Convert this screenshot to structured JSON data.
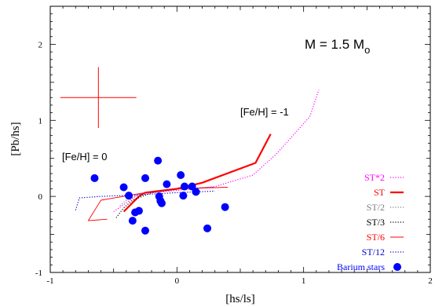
{
  "chart_data": {
    "type": "line",
    "xlabel": "[hs/ls]",
    "ylabel": "[Pb/hs]",
    "xlim": [
      -1,
      2
    ],
    "ylim": [
      -1,
      2.5
    ],
    "xticks": [
      -1,
      0,
      1,
      2
    ],
    "yticks": [
      -1,
      0,
      1,
      2
    ],
    "tick_labels": {
      "x": [
        "-1",
        "0",
        "1",
        "2"
      ],
      "y": [
        "-1",
        "0",
        "1",
        "2"
      ]
    },
    "grid": false,
    "legend_position": "bottom-right",
    "annotations": {
      "mass": "M = 1.5 M",
      "mass_subscript": "o",
      "feh_low": "[Fe/H] = -1",
      "feh_high": "[Fe/H] = 0"
    },
    "error_bar": {
      "x": -0.62,
      "y": 1.3,
      "x_err": 0.3,
      "y_err": 0.4,
      "color": "#ff0000"
    },
    "series": [
      {
        "name": "ST*2",
        "color": "#ff00ff",
        "style": "dotted",
        "width": 1.2,
        "x": [
          -0.5,
          -0.3,
          0.0,
          0.3,
          0.6,
          0.78,
          1.05,
          1.12
        ],
        "y": [
          -0.2,
          0.03,
          0.08,
          0.13,
          0.28,
          0.55,
          1.05,
          1.4
        ]
      },
      {
        "name": "ST",
        "color": "#ff0000",
        "style": "solid",
        "width": 2.2,
        "x": [
          -0.42,
          -0.3,
          -0.25,
          0.0,
          0.2,
          0.62,
          0.74
        ],
        "y": [
          -0.2,
          0.0,
          0.05,
          0.1,
          0.18,
          0.44,
          0.82
        ]
      },
      {
        "name": "ST/2",
        "color": "#808080",
        "style": "dotted",
        "width": 1.2,
        "x": [
          -0.45,
          -0.4,
          -0.3,
          -0.2,
          -0.1
        ],
        "y": [
          -0.12,
          -0.05,
          0.03,
          0.06,
          0.07
        ]
      },
      {
        "name": "ST/3",
        "color": "#000000",
        "style": "dotted",
        "width": 1.2,
        "x": [
          -0.48,
          -0.42,
          -0.35,
          -0.2,
          0.0,
          0.3
        ],
        "y": [
          -0.28,
          -0.15,
          -0.05,
          0.05,
          0.1,
          0.12
        ]
      },
      {
        "name": "ST/6",
        "color": "#ff0000",
        "style": "solid",
        "width": 0.9,
        "x": [
          -0.55,
          -0.7,
          -0.6,
          -0.25,
          0.0,
          0.4
        ],
        "y": [
          -0.3,
          -0.32,
          -0.05,
          0.05,
          0.1,
          0.12
        ]
      },
      {
        "name": "ST/12",
        "color": "#0000cc",
        "style": "dotted",
        "width": 1.2,
        "x": [
          -0.8,
          -0.77,
          -0.6,
          -0.3,
          0.0,
          0.3
        ],
        "y": [
          -0.18,
          -0.02,
          0.0,
          0.02,
          0.05,
          0.07
        ]
      }
    ],
    "scatter": {
      "name": "Barium stars",
      "color": "#0000ff",
      "x": [
        -0.65,
        -0.42,
        -0.38,
        -0.35,
        -0.33,
        -0.3,
        -0.25,
        -0.25,
        -0.15,
        -0.14,
        -0.13,
        -0.12,
        -0.08,
        0.03,
        0.05,
        0.06,
        0.12,
        0.15,
        0.24,
        0.38
      ],
      "y": [
        0.24,
        0.12,
        0.01,
        -0.32,
        -0.21,
        -0.19,
        -0.45,
        0.24,
        0.47,
        0.0,
        -0.06,
        -0.09,
        0.16,
        0.28,
        0.01,
        0.13,
        0.13,
        0.06,
        -0.42,
        -0.14
      ]
    }
  }
}
